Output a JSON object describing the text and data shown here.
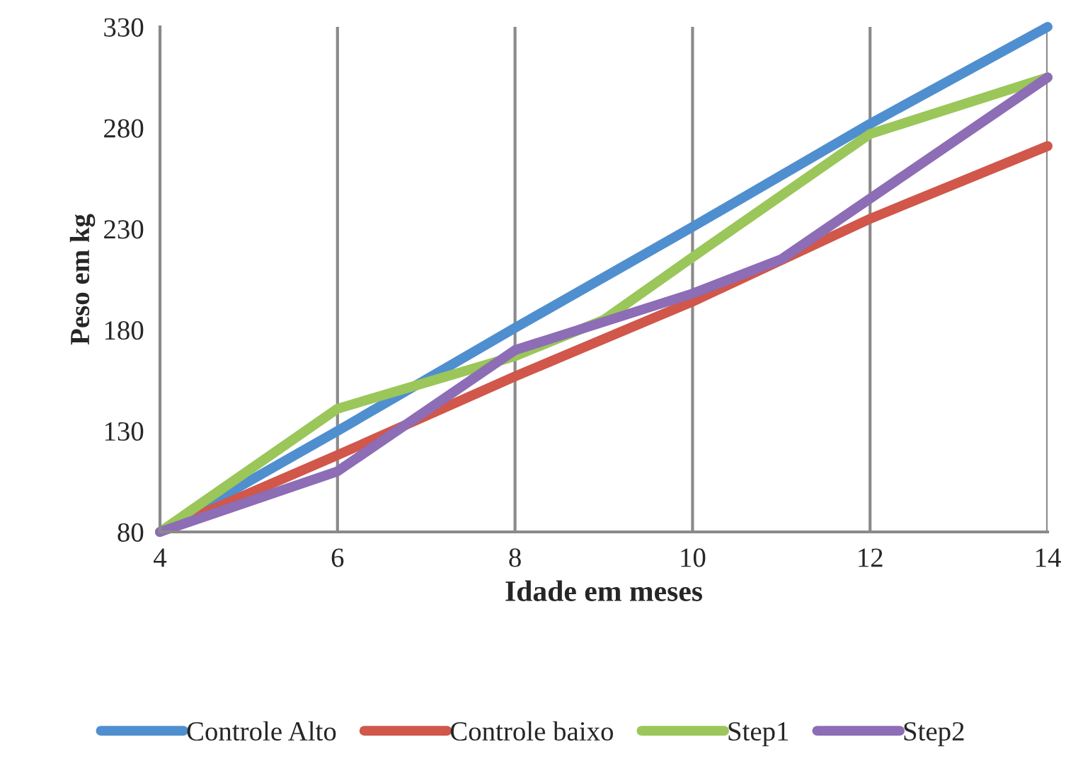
{
  "chart_data": {
    "type": "line",
    "xlabel": "Idade em meses",
    "ylabel": "Peso em kg",
    "xlim": [
      4,
      14
    ],
    "xticks": [
      4,
      6,
      8,
      10,
      12,
      14
    ],
    "ylim": [
      80,
      330
    ],
    "yticks": [
      80,
      130,
      180,
      230,
      280,
      330
    ],
    "grid": "x",
    "legend": "bottom",
    "marker": "none",
    "line_style": "solid",
    "series": [
      {
        "name": "Controle Alto",
        "color": "#4f8fcf",
        "x": [
          4,
          6,
          8,
          10,
          12,
          14
        ],
        "values": [
          80,
          130,
          181,
          231,
          282,
          330
        ]
      },
      {
        "name": "Controle baixo",
        "color": "#d0574a",
        "x": [
          4,
          6,
          8,
          10,
          12,
          14
        ],
        "values": [
          80,
          118,
          157,
          194,
          235,
          271
        ]
      },
      {
        "name": "Step1",
        "color": "#9bc65a",
        "x": [
          4,
          6,
          8,
          9,
          10,
          12,
          14
        ],
        "values": [
          80,
          141,
          167,
          185,
          216,
          277,
          305
        ]
      },
      {
        "name": "Step2",
        "color": "#8d6db5",
        "x": [
          4,
          6,
          8,
          10,
          11,
          12,
          14
        ],
        "values": [
          80,
          110,
          170,
          198,
          215,
          245,
          305
        ]
      }
    ]
  }
}
